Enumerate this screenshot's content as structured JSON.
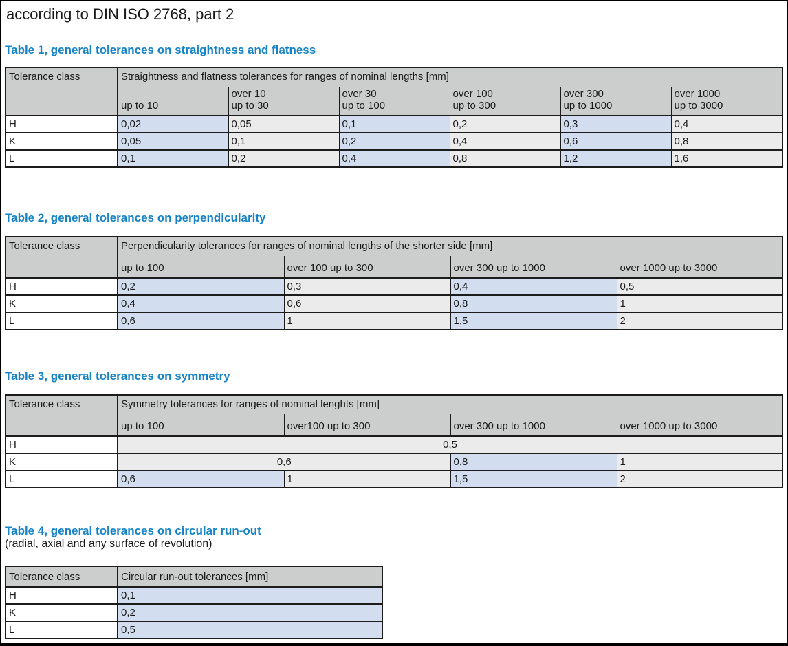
{
  "page": {
    "title": "according to DIN ISO 2768, part 2"
  },
  "colors": {
    "heading_blue": "#1583c5",
    "table_header_bg": "#cccecd",
    "cell_blue": "#d2deef",
    "cell_gray": "#ebebeb",
    "border": "#1c1c1c",
    "text": "#1a1a1a"
  },
  "tables": [
    {
      "heading": "Table 1, general tolerances on straightness and flatness",
      "subheading": null,
      "corner": "Tolerance class",
      "span_header": "Straightness and flatness tolerances for ranges of nominal lengths [mm]",
      "sub_headers": [
        "up to 10",
        "over 10\nup to 30",
        "over 30\nup to 100",
        "over 100\nup to 300",
        "over 300\nup to 1000",
        "over 1000\nup to 3000"
      ],
      "rows": [
        {
          "label": "H",
          "cells": [
            {
              "t": "0,02",
              "c": "blue"
            },
            {
              "t": "0,05",
              "c": "gray"
            },
            {
              "t": "0,1",
              "c": "blue"
            },
            {
              "t": "0,2",
              "c": "gray"
            },
            {
              "t": "0,3",
              "c": "blue"
            },
            {
              "t": "0,4",
              "c": "gray"
            }
          ]
        },
        {
          "label": "K",
          "cells": [
            {
              "t": "0,05",
              "c": "blue"
            },
            {
              "t": "0,1",
              "c": "gray"
            },
            {
              "t": "0,2",
              "c": "blue"
            },
            {
              "t": "0,4",
              "c": "gray"
            },
            {
              "t": "0,6",
              "c": "blue"
            },
            {
              "t": "0,8",
              "c": "gray"
            }
          ]
        },
        {
          "label": "L",
          "cells": [
            {
              "t": "0,1",
              "c": "blue"
            },
            {
              "t": "0,2",
              "c": "gray"
            },
            {
              "t": "0,4",
              "c": "blue"
            },
            {
              "t": "0,8",
              "c": "gray"
            },
            {
              "t": "1,2",
              "c": "blue"
            },
            {
              "t": "1,6",
              "c": "gray"
            }
          ]
        }
      ]
    },
    {
      "heading": "Table 2, general tolerances on perpendicularity",
      "subheading": null,
      "corner": "Tolerance class",
      "span_header": "Perpendicularity tolerances for ranges of nominal lengths of the shorter side [mm]",
      "sub_headers": [
        "up to 100",
        "over 100 up to 300",
        "over 300 up to 1000",
        "over 1000 up to 3000"
      ],
      "rows": [
        {
          "label": "H",
          "cells": [
            {
              "t": "0,2",
              "c": "blue"
            },
            {
              "t": "0,3",
              "c": "gray"
            },
            {
              "t": "0,4",
              "c": "blue"
            },
            {
              "t": "0,5",
              "c": "gray"
            }
          ]
        },
        {
          "label": "K",
          "cells": [
            {
              "t": "0,4",
              "c": "blue"
            },
            {
              "t": "0,6",
              "c": "gray"
            },
            {
              "t": "0,8",
              "c": "blue"
            },
            {
              "t": "1",
              "c": "gray"
            }
          ]
        },
        {
          "label": "L",
          "cells": [
            {
              "t": "0,6",
              "c": "blue"
            },
            {
              "t": "1",
              "c": "gray"
            },
            {
              "t": "1,5",
              "c": "blue"
            },
            {
              "t": "2",
              "c": "gray"
            }
          ]
        }
      ]
    },
    {
      "heading": "Table 3, general tolerances on symmetry",
      "subheading": null,
      "corner": "Tolerance class",
      "span_header": "Symmetry tolerances for ranges of nominal lenghts [mm]",
      "sub_headers": [
        "up to 100",
        "over100 up to 300",
        "over 300 up to 1000",
        "over 1000 up to 3000"
      ],
      "rows": [
        {
          "label": "H",
          "cells": [
            {
              "t": "0,5",
              "c": "gray",
              "span": 4,
              "align": "center"
            }
          ]
        },
        {
          "label": "K",
          "cells": [
            {
              "t": "0,6",
              "c": "gray",
              "span": 2,
              "align": "center"
            },
            {
              "t": "0,8",
              "c": "blue"
            },
            {
              "t": "1",
              "c": "gray"
            }
          ]
        },
        {
          "label": "L",
          "cells": [
            {
              "t": "0,6",
              "c": "blue"
            },
            {
              "t": "1",
              "c": "gray"
            },
            {
              "t": "1,5",
              "c": "blue"
            },
            {
              "t": "2",
              "c": "gray"
            }
          ]
        }
      ]
    },
    {
      "heading": "Table 4, general tolerances on circular run-out",
      "subheading": "(radial, axial and any surface of revolution)",
      "corner": "Tolerance class",
      "span_header": "Circular run-out tolerances [mm]",
      "sub_headers": null,
      "rows": [
        {
          "label": "H",
          "cells": [
            {
              "t": "0,1",
              "c": "blue"
            }
          ]
        },
        {
          "label": "K",
          "cells": [
            {
              "t": "0,2",
              "c": "blue"
            }
          ]
        },
        {
          "label": "L",
          "cells": [
            {
              "t": "0,5",
              "c": "blue"
            }
          ]
        }
      ]
    }
  ]
}
